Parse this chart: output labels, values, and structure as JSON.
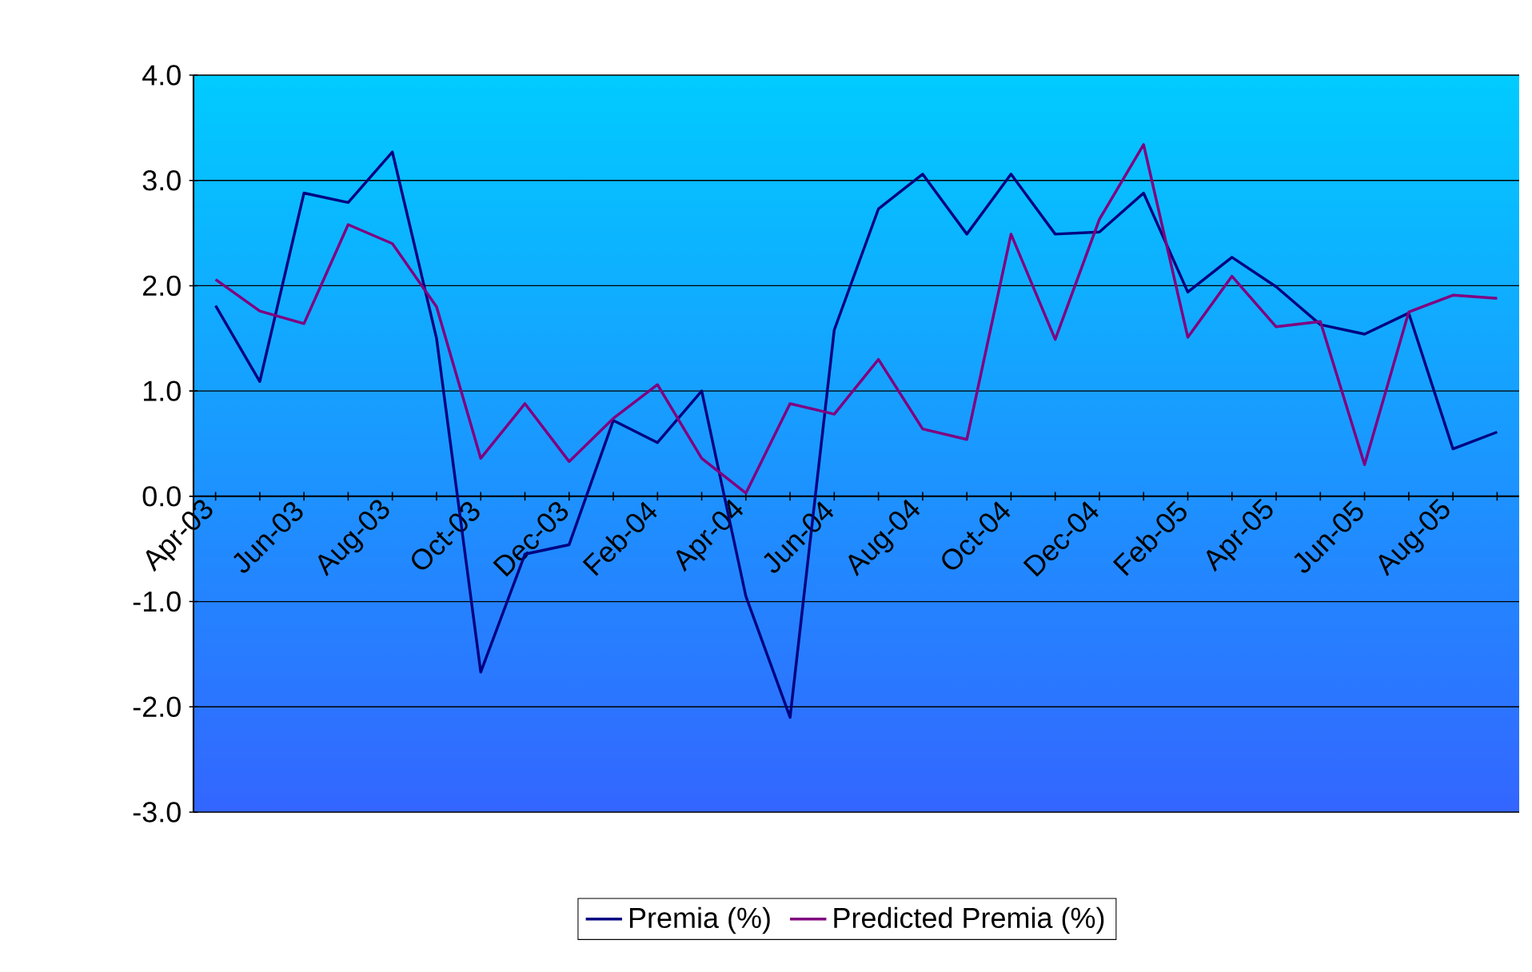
{
  "chart_data": {
    "type": "line",
    "categories": [
      "Apr-03",
      null,
      "Jun-03",
      null,
      "Aug-03",
      null,
      "Oct-03",
      null,
      "Dec-03",
      null,
      "Feb-04",
      null,
      "Apr-04",
      null,
      "Jun-04",
      null,
      "Aug-04",
      null,
      "Oct-04",
      null,
      "Dec-04",
      null,
      "Feb-05",
      null,
      "Apr-05",
      null,
      "Jun-05",
      null,
      "Aug-05",
      null
    ],
    "series": [
      {
        "name": "Premia (%)",
        "color": "#000080",
        "values": [
          1.81,
          1.09,
          2.88,
          2.79,
          3.27,
          1.5,
          -1.67,
          -0.55,
          -0.46,
          0.72,
          0.51,
          1.0,
          -0.95,
          -2.1,
          1.58,
          2.73,
          3.06,
          2.49,
          3.06,
          2.49,
          2.51,
          2.88,
          1.94,
          2.27,
          1.99,
          1.63,
          1.54,
          1.74,
          0.45,
          0.61
        ]
      },
      {
        "name": "Predicted Premia (%)",
        "color": "#800080",
        "values": [
          2.06,
          1.76,
          1.64,
          2.58,
          2.4,
          1.8,
          0.36,
          0.88,
          0.33,
          0.74,
          1.06,
          0.36,
          0.03,
          0.88,
          0.78,
          1.3,
          0.64,
          0.54,
          2.49,
          1.49,
          2.63,
          3.34,
          1.51,
          2.09,
          1.61,
          1.66,
          0.3,
          1.75,
          1.91,
          1.88
        ]
      }
    ],
    "ylim": [
      -3,
      4
    ],
    "yticks": [
      {
        "value": -3,
        "label": "-3.0"
      },
      {
        "value": -2,
        "label": "-2.0"
      },
      {
        "value": -1,
        "label": "-1.0"
      },
      {
        "value": 0,
        "label": "0.0"
      },
      {
        "value": 1,
        "label": "1.0"
      },
      {
        "value": 2,
        "label": "2.0"
      },
      {
        "value": 3,
        "label": "3.0"
      },
      {
        "value": 4,
        "label": "4.0"
      }
    ],
    "grid": "y",
    "legend": "bottom",
    "marker": "none",
    "line_style": "solid"
  }
}
